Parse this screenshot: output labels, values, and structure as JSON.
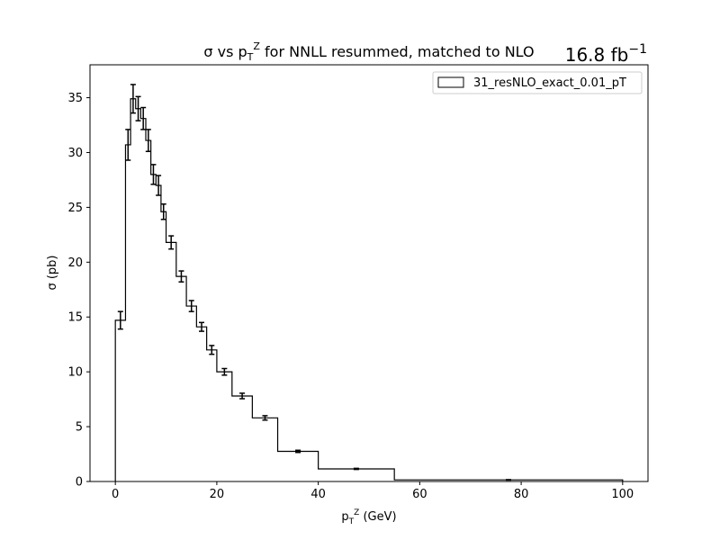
{
  "chart_data": {
    "type": "histogram",
    "title": "σ vs p_T^Z for NNLL resummed, matched to NLO",
    "title_parts": {
      "prefix": "σ vs p",
      "sub": "T",
      "sup": "Z",
      "suffix": " for NNLL resummed, matched to NLO"
    },
    "luminosity": {
      "base": "16.8 fb",
      "sup": "−1"
    },
    "xlabel": "p_T^Z (GeV)",
    "xlabel_parts": {
      "base": "p",
      "sub": "T",
      "sup": "Z",
      "suffix": " (GeV)"
    },
    "ylabel": "σ (pb)",
    "xlim": [
      -5,
      105
    ],
    "ylim": [
      0,
      38
    ],
    "xticks": [
      0,
      20,
      40,
      60,
      80,
      100
    ],
    "yticks": [
      0,
      5,
      10,
      15,
      20,
      25,
      30,
      35
    ],
    "grid": false,
    "legend_position": "top-right",
    "series": [
      {
        "name": "31_resNLO_exact_0.01_pT",
        "color": "#000000",
        "bin_edges": [
          0,
          2,
          3,
          4,
          5,
          6,
          7,
          8,
          9,
          10,
          12,
          14,
          16,
          18,
          20,
          23,
          27,
          32,
          40,
          55,
          100
        ],
        "values": [
          14.7,
          30.7,
          34.9,
          34.0,
          33.1,
          31.1,
          28.0,
          27.0,
          24.6,
          21.8,
          18.7,
          16.0,
          14.1,
          12.0,
          10.0,
          7.8,
          5.8,
          2.75,
          1.15,
          0.15
        ],
        "errors": [
          0.8,
          1.4,
          1.3,
          1.1,
          1.0,
          1.0,
          0.9,
          0.9,
          0.7,
          0.6,
          0.5,
          0.5,
          0.4,
          0.4,
          0.3,
          0.25,
          0.2,
          0.1,
          0.05,
          0.02
        ]
      }
    ]
  }
}
